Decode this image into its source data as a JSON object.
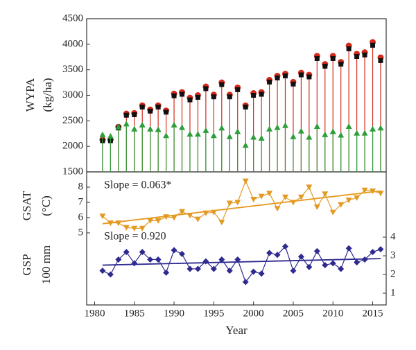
{
  "chart_data": [
    {
      "type": "stem",
      "ylabel": [
        "WYPA",
        "(kg/ha)"
      ],
      "xlim": [
        1979,
        2016.7
      ],
      "x": [
        1981,
        1982,
        1983,
        1984,
        1985,
        1986,
        1987,
        1988,
        1989,
        1990,
        1991,
        1992,
        1993,
        1994,
        1995,
        1996,
        1997,
        1998,
        1999,
        2000,
        2001,
        2002,
        2003,
        2004,
        2005,
        2006,
        2007,
        2008,
        2009,
        2010,
        2011,
        2012,
        2013,
        2014,
        2015,
        2016
      ],
      "ylim": [
        1500,
        4500
      ],
      "yticks": [
        1500,
        2000,
        2500,
        3000,
        3500,
        4000,
        4500
      ],
      "series": [
        {
          "color": "#d42a1c",
          "marker": "circle",
          "stem": true,
          "values": [
            2130,
            2130,
            2380,
            2640,
            2650,
            2800,
            2720,
            2800,
            2700,
            3030,
            3060,
            2950,
            3000,
            3170,
            3010,
            3250,
            3010,
            3150,
            2800,
            3040,
            3060,
            3300,
            3380,
            3420,
            3260,
            3440,
            3400,
            3770,
            3610,
            3770,
            3650,
            3970,
            3810,
            3840,
            4040,
            3740
          ]
        },
        {
          "color": "#111111",
          "marker": "square",
          "stem": false,
          "values": [
            2110,
            2110,
            2360,
            2610,
            2620,
            2770,
            2690,
            2770,
            2670,
            2990,
            3020,
            2910,
            2960,
            3130,
            2970,
            3210,
            2970,
            3110,
            2770,
            3000,
            3020,
            3260,
            3340,
            3380,
            3220,
            3400,
            3360,
            3720,
            3570,
            3720,
            3610,
            3910,
            3760,
            3790,
            3980,
            3680
          ]
        },
        {
          "color": "#2e9e3a",
          "marker": "triangle-up",
          "stem": true,
          "values": [
            2230,
            2200,
            2380,
            2440,
            2340,
            2420,
            2340,
            2330,
            2210,
            2420,
            2370,
            2240,
            2240,
            2310,
            2210,
            2360,
            2190,
            2290,
            2020,
            2180,
            2160,
            2340,
            2370,
            2410,
            2190,
            2300,
            2180,
            2390,
            2230,
            2290,
            2220,
            2390,
            2260,
            2260,
            2340,
            2360
          ]
        }
      ]
    },
    {
      "type": "line",
      "ylabel": [
        "GSAT",
        "(°C)"
      ],
      "annotation": "Slope = 0.063*",
      "xlim": [
        1979,
        2016.7
      ],
      "x": [
        1981,
        1982,
        1983,
        1984,
        1985,
        1986,
        1987,
        1988,
        1989,
        1990,
        1991,
        1992,
        1993,
        1994,
        1995,
        1996,
        1997,
        1998,
        1999,
        2000,
        2001,
        2002,
        2003,
        2004,
        2005,
        2006,
        2007,
        2008,
        2009,
        2010,
        2011,
        2012,
        2013,
        2014,
        2015,
        2016
      ],
      "ylim": [
        4.5,
        9
      ],
      "yticks": [
        5,
        6,
        7,
        8
      ],
      "series": [
        {
          "color": "#e39a22",
          "marker": "triangle-down",
          "trend": [
            5.6,
            7.75
          ],
          "values": [
            6.1,
            5.65,
            5.65,
            5.35,
            5.3,
            5.3,
            5.8,
            5.8,
            6.05,
            6.0,
            6.4,
            6.15,
            5.9,
            6.3,
            6.35,
            5.7,
            6.95,
            7.0,
            8.4,
            7.2,
            7.4,
            7.6,
            6.6,
            7.35,
            7.0,
            7.35,
            8.0,
            6.7,
            7.55,
            6.35,
            6.85,
            7.15,
            7.3,
            7.8,
            7.75,
            7.6
          ]
        }
      ]
    },
    {
      "type": "line",
      "ylabel": [
        "GSP",
        "100 mm"
      ],
      "annotation": "Slope = 0.920",
      "xlabel": "Year",
      "xlim": [
        1979,
        2016.7
      ],
      "xticks": [
        1980,
        1985,
        1990,
        1995,
        2000,
        2005,
        2010,
        2015
      ],
      "x": [
        1981,
        1982,
        1983,
        1984,
        1985,
        1986,
        1987,
        1988,
        1989,
        1990,
        1991,
        1992,
        1993,
        1994,
        1995,
        1996,
        1997,
        1998,
        1999,
        2000,
        2001,
        2002,
        2003,
        2004,
        2005,
        2006,
        2007,
        2008,
        2009,
        2010,
        2011,
        2012,
        2013,
        2014,
        2015,
        2016
      ],
      "y2lim": [
        0.4,
        4.3
      ],
      "y2ticks": [
        1,
        2,
        3,
        4
      ],
      "series": [
        {
          "color": "#2e2a8f",
          "marker": "diamond",
          "axis": "y2",
          "trend": [
            2.5,
            2.85
          ],
          "values": [
            2.2,
            2.0,
            2.8,
            3.2,
            2.6,
            3.2,
            2.8,
            2.8,
            2.1,
            3.3,
            3.1,
            2.3,
            2.3,
            2.7,
            2.3,
            2.8,
            2.2,
            2.8,
            1.6,
            2.15,
            2.05,
            3.15,
            3.05,
            3.5,
            2.2,
            2.95,
            2.4,
            3.25,
            2.5,
            2.6,
            2.3,
            3.4,
            2.65,
            2.8,
            3.2,
            3.35
          ]
        }
      ]
    }
  ]
}
